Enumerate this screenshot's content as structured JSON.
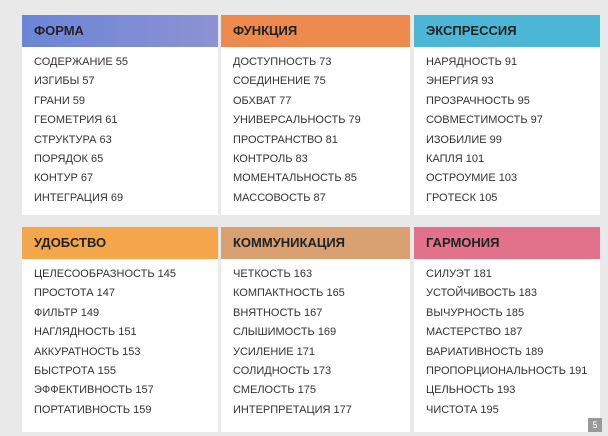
{
  "sections": [
    {
      "title": "ФОРМА",
      "items": [
        "СОДЕРЖАНИЕ 55",
        "ИЗГИБЫ 57",
        "ГРАНИ 59",
        "ГЕОМЕТРИЯ 61",
        "СТРУКТУРА 63",
        "ПОРЯДОК 65",
        "КОНТУР 67",
        "ИНТЕГРАЦИЯ 69"
      ]
    },
    {
      "title": "ФУНКЦИЯ",
      "items": [
        "ДОСТУПНОСТЬ 73",
        "СОЕДИНЕНИЕ 75",
        "ОБХВАТ 77",
        "УНИВЕРСАЛЬНОСТЬ 79",
        "ПРОСТРАНСТВО 81",
        "КОНТРОЛЬ 83",
        "МОМЕНТАЛЬНОСТЬ 85",
        "МАССОВОСТЬ 87"
      ]
    },
    {
      "title": "ЭКСПРЕССИЯ",
      "items": [
        "НАРЯДНОСТЬ 91",
        "ЭНЕРГИЯ 93",
        "ПРОЗРАЧНОСТЬ 95",
        "СОВМЕСТИМОСТЬ 97",
        "ИЗОБИЛИЕ 99",
        "КАПЛЯ 101",
        "ОСТРОУМИЕ 103",
        "ГРОТЕСК 105"
      ]
    },
    {
      "title": "УДОБСТВО",
      "items": [
        "ЦЕЛЕСООБРАЗНОСТЬ 145",
        "ПРОСТОТА 147",
        "ФИЛЬТР 149",
        "НАГЛЯДНОСТЬ 151",
        "АККУРАТНОСТЬ 153",
        "БЫСТРОТА 155",
        "ЭФФЕКТИВНОСТЬ 157",
        "ПОРТАТИВНОСТЬ 159"
      ]
    },
    {
      "title": "КОММУНИКАЦИЯ",
      "items": [
        "ЧЕТКОСТЬ 163",
        "КОМПАКТНОСТЬ 165",
        "ВНЯТНОСТЬ 167",
        "СЛЫШИМОСТЬ 169",
        "УСИЛЕНИЕ 171",
        "СОЛИДНОСТЬ 173",
        "СМЕЛОСТЬ 175",
        "ИНТЕРПРЕТАЦИЯ 177"
      ]
    },
    {
      "title": "ГАРМОНИЯ",
      "items": [
        "СИЛУЭТ 181",
        "УСТОЙЧИВОСТЬ 183",
        "ВЫЧУРНОСТЬ 185",
        "МАСТЕРСТВО 187",
        "ВАРИАТИВНОСТЬ 189",
        "ПРОПОРЦИОНАЛЬНОСТЬ 191",
        "ЦЕЛЬНОСТЬ 193",
        "ЧИСТОТА 195"
      ]
    }
  ],
  "page_number": 5
}
